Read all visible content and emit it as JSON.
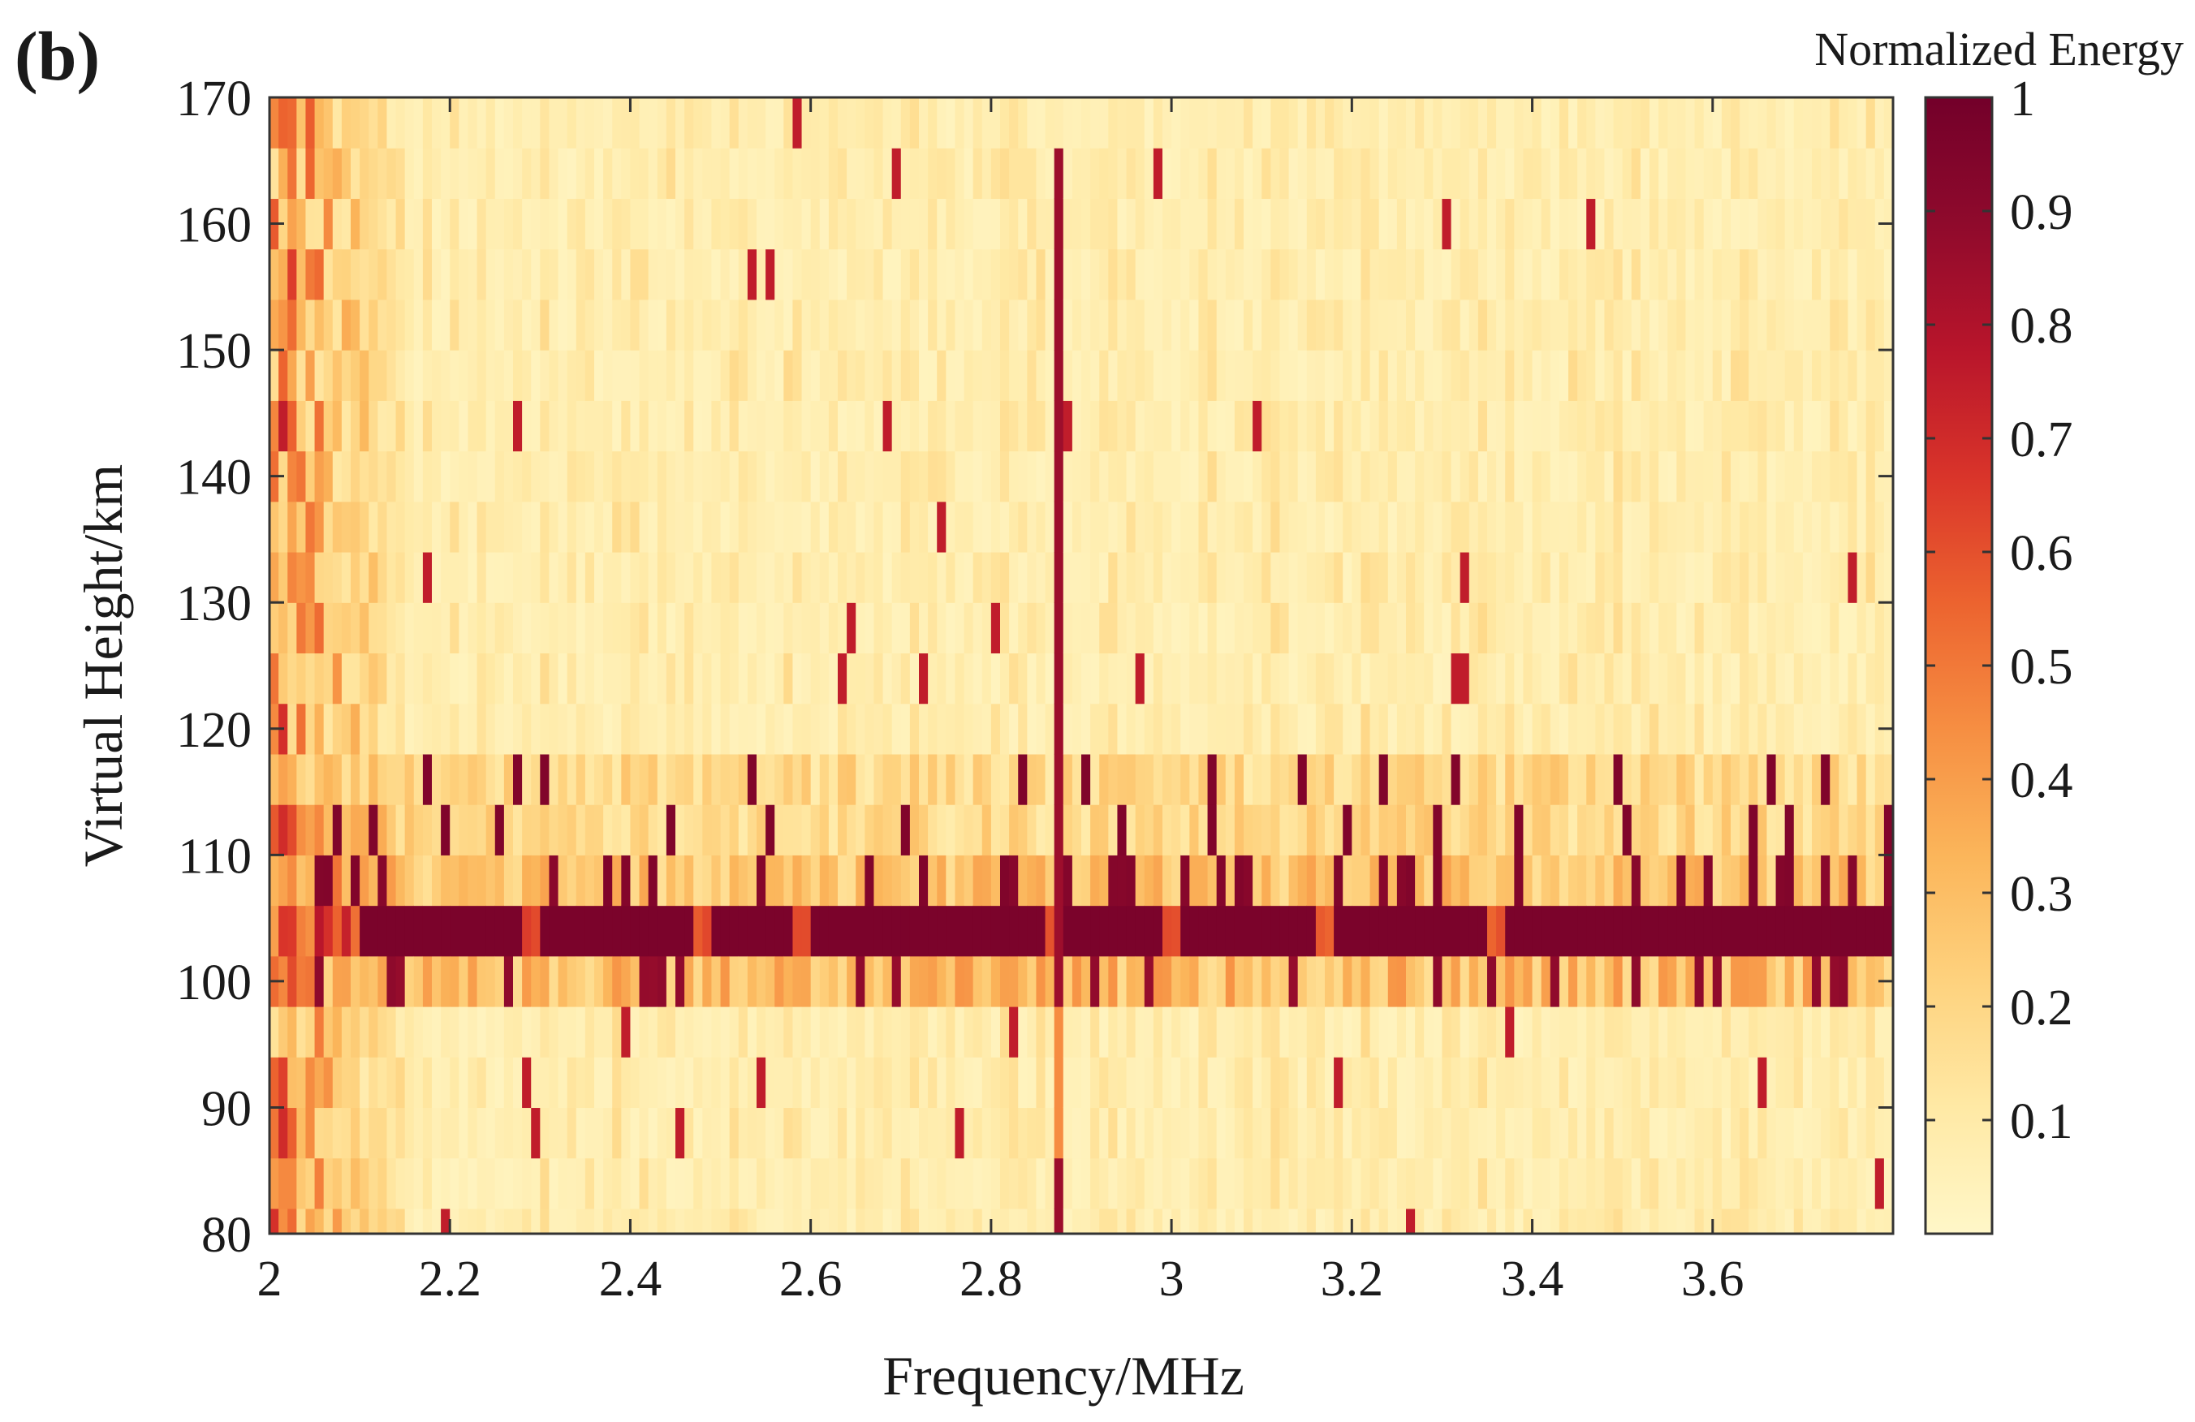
{
  "panel_label": "(b)",
  "chart_data": {
    "type": "heatmap",
    "title": "",
    "xlabel": "Frequency/MHz",
    "ylabel": "Virtual Height/km",
    "xlim": [
      2.0,
      3.8
    ],
    "ylim": [
      80,
      170
    ],
    "x_ticks": [
      2,
      2.2,
      2.4,
      2.6,
      2.8,
      3,
      3.2,
      3.4,
      3.6
    ],
    "x_tick_labels": [
      "2",
      "2.2",
      "2.4",
      "2.6",
      "2.8",
      "3",
      "3.2",
      "3.4",
      "3.6"
    ],
    "y_ticks": [
      80,
      90,
      100,
      110,
      120,
      130,
      140,
      150,
      160,
      170
    ],
    "y_tick_labels": [
      "80",
      "90",
      "100",
      "110",
      "120",
      "130",
      "140",
      "150",
      "160",
      "170"
    ],
    "colorbar": {
      "title": "Normalized Energy",
      "range": [
        0,
        1
      ],
      "ticks": [
        0.1,
        0.2,
        0.3,
        0.4,
        0.5,
        0.6,
        0.7,
        0.8,
        0.9,
        1
      ],
      "tick_labels": [
        "0.1",
        "0.2",
        "0.3",
        "0.4",
        "0.5",
        "0.6",
        "0.7",
        "0.8",
        "0.9",
        "1"
      ],
      "colormap_stops": [
        "#fff7c8",
        "#ffe9a5",
        "#fed27e",
        "#fbb55a",
        "#f68e42",
        "#ec632f",
        "#d9342a",
        "#b8152b",
        "#8f0a2c",
        "#73002a"
      ]
    },
    "grid": {
      "freq_bin_mhz": 0.01,
      "height_rows_km": [
        [
          80,
          82
        ],
        [
          82,
          86
        ],
        [
          86,
          90
        ],
        [
          90,
          94
        ],
        [
          94,
          98
        ],
        [
          98,
          102
        ],
        [
          102,
          106
        ],
        [
          106,
          110
        ],
        [
          110,
          114
        ],
        [
          114,
          118
        ],
        [
          118,
          122
        ],
        [
          122,
          126
        ],
        [
          126,
          130
        ],
        [
          130,
          134
        ],
        [
          134,
          138
        ],
        [
          138,
          142
        ],
        [
          142,
          146
        ],
        [
          146,
          150
        ],
        [
          150,
          154
        ],
        [
          154,
          158
        ],
        [
          158,
          162
        ],
        [
          162,
          166
        ],
        [
          166,
          170
        ]
      ]
    },
    "features": {
      "strong_layer": {
        "height_km": [
          102,
          106
        ],
        "freq_mhz": [
          2.1,
          3.8
        ],
        "energy": 0.97,
        "gaps_mhz": [
          2.29,
          2.48,
          2.59,
          2.87,
          3.0,
          3.17,
          3.36
        ]
      },
      "layer_upper_band": {
        "height_km": [
          106,
          110
        ],
        "energy_mean": 0.3
      },
      "layer_lower_band": {
        "height_km": [
          98,
          102
        ],
        "energy_mean": 0.32
      },
      "diffuse_band": {
        "height_km": [
          110,
          118
        ],
        "energy_mean": 0.2
      },
      "vertical_line": {
        "freq_mhz": 2.875,
        "height_km": [
          80,
          167
        ],
        "energy": 0.85
      },
      "low_freq_region": {
        "freq_mhz": [
          2.0,
          2.16
        ],
        "energy_mean": 0.45
      }
    }
  }
}
